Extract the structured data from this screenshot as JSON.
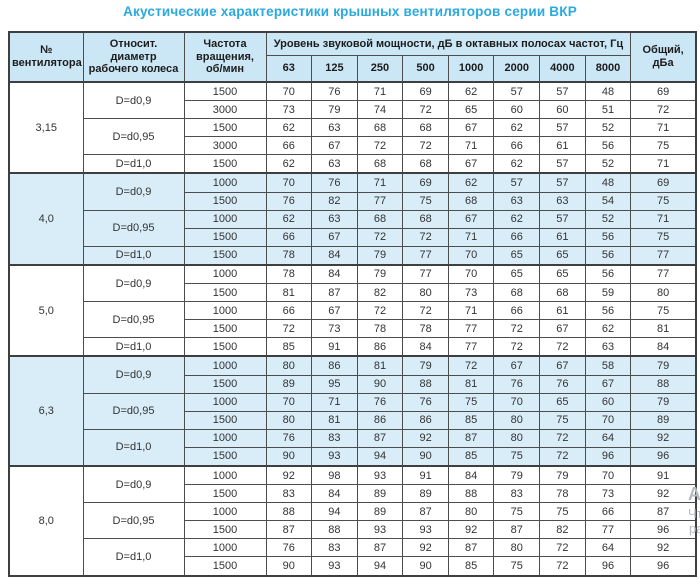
{
  "title": "Акустические характеристики крышных вентиляторов серии ВКР",
  "colors": {
    "title_blue": "#29a9e0",
    "header_bg": "#cbe7f5",
    "shaded_row_bg": "#d9edf8",
    "border": "#4d4d4d",
    "text": "#333333"
  },
  "watermark": {
    "fragments": [
      "Ак",
      "Чт",
      "ра"
    ]
  },
  "chart_data": {
    "type": "table",
    "title": "Акустические характеристики крышных вентиляторов серии ВКР",
    "header": {
      "fan_number": "№ вентилятора",
      "rel_diameter": "Относит. диаметр рабочего колеса",
      "rotation": "Частота вращения, об/мин",
      "spl_group": "Уровень звуковой мощности, дБ в октавных полосах частот, Гц",
      "freq_bands": [
        "63",
        "125",
        "250",
        "500",
        "1000",
        "2000",
        "4000",
        "8000"
      ],
      "total": "Общий, дБа"
    },
    "groups": [
      {
        "fan": "3,15",
        "shaded": false,
        "subgroups": [
          {
            "diameter": "D=d0,9",
            "rows": [
              {
                "rpm": "1500",
                "values": [
                  70,
                  76,
                  71,
                  69,
                  62,
                  57,
                  57,
                  48
                ],
                "total": 69
              },
              {
                "rpm": "3000",
                "values": [
                  73,
                  79,
                  74,
                  72,
                  65,
                  60,
                  60,
                  51
                ],
                "total": 72
              }
            ]
          },
          {
            "diameter": "D=d0,95",
            "rows": [
              {
                "rpm": "1500",
                "values": [
                  62,
                  63,
                  68,
                  68,
                  67,
                  62,
                  57,
                  52
                ],
                "total": 71
              },
              {
                "rpm": "3000",
                "values": [
                  66,
                  67,
                  72,
                  72,
                  71,
                  66,
                  61,
                  56
                ],
                "total": 75
              }
            ]
          },
          {
            "diameter": "D=d1,0",
            "rows": [
              {
                "rpm": "1500",
                "values": [
                  62,
                  63,
                  68,
                  68,
                  67,
                  62,
                  57,
                  52
                ],
                "total": 71
              }
            ]
          }
        ]
      },
      {
        "fan": "4,0",
        "shaded": true,
        "subgroups": [
          {
            "diameter": "D=d0,9",
            "rows": [
              {
                "rpm": "1000",
                "values": [
                  70,
                  76,
                  71,
                  69,
                  62,
                  57,
                  57,
                  48
                ],
                "total": 69
              },
              {
                "rpm": "1500",
                "values": [
                  76,
                  82,
                  77,
                  75,
                  68,
                  63,
                  63,
                  54
                ],
                "total": 75
              }
            ]
          },
          {
            "diameter": "D=d0,95",
            "rows": [
              {
                "rpm": "1000",
                "values": [
                  62,
                  63,
                  68,
                  68,
                  67,
                  62,
                  57,
                  52
                ],
                "total": 71
              },
              {
                "rpm": "1500",
                "values": [
                  66,
                  67,
                  72,
                  72,
                  71,
                  66,
                  61,
                  56
                ],
                "total": 75
              }
            ]
          },
          {
            "diameter": "D=d1,0",
            "rows": [
              {
                "rpm": "1500",
                "values": [
                  78,
                  84,
                  79,
                  77,
                  70,
                  65,
                  65,
                  56
                ],
                "total": 77
              }
            ]
          }
        ]
      },
      {
        "fan": "5,0",
        "shaded": false,
        "subgroups": [
          {
            "diameter": "D=d0,9",
            "rows": [
              {
                "rpm": "1000",
                "values": [
                  78,
                  84,
                  79,
                  77,
                  70,
                  65,
                  65,
                  56
                ],
                "total": 77
              },
              {
                "rpm": "1500",
                "values": [
                  81,
                  87,
                  82,
                  80,
                  73,
                  68,
                  68,
                  59
                ],
                "total": 80
              }
            ]
          },
          {
            "diameter": "D=d0,95",
            "rows": [
              {
                "rpm": "1000",
                "values": [
                  66,
                  67,
                  72,
                  72,
                  71,
                  66,
                  61,
                  56
                ],
                "total": 75
              },
              {
                "rpm": "1500",
                "values": [
                  72,
                  73,
                  78,
                  78,
                  77,
                  72,
                  67,
                  62
                ],
                "total": 81
              }
            ]
          },
          {
            "diameter": "D=d1,0",
            "rows": [
              {
                "rpm": "1500",
                "values": [
                  85,
                  91,
                  86,
                  84,
                  77,
                  72,
                  72,
                  63
                ],
                "total": 84
              }
            ]
          }
        ]
      },
      {
        "fan": "6,3",
        "shaded": true,
        "subgroups": [
          {
            "diameter": "D=d0,9",
            "rows": [
              {
                "rpm": "1000",
                "values": [
                  80,
                  86,
                  81,
                  79,
                  72,
                  67,
                  67,
                  58
                ],
                "total": 79
              },
              {
                "rpm": "1500",
                "values": [
                  89,
                  95,
                  90,
                  88,
                  81,
                  76,
                  76,
                  67
                ],
                "total": 88
              }
            ]
          },
          {
            "diameter": "D=d0,95",
            "rows": [
              {
                "rpm": "1000",
                "values": [
                  70,
                  71,
                  76,
                  76,
                  75,
                  70,
                  65,
                  60
                ],
                "total": 79
              },
              {
                "rpm": "1500",
                "values": [
                  80,
                  81,
                  86,
                  86,
                  85,
                  80,
                  75,
                  70
                ],
                "total": 89
              }
            ]
          },
          {
            "diameter": "D=d1,0",
            "rows": [
              {
                "rpm": "1000",
                "values": [
                  76,
                  83,
                  87,
                  92,
                  87,
                  80,
                  72,
                  64
                ],
                "total": 92
              },
              {
                "rpm": "1500",
                "values": [
                  90,
                  93,
                  94,
                  90,
                  85,
                  75,
                  72,
                  96
                ],
                "total": 96
              }
            ]
          }
        ]
      },
      {
        "fan": "8,0",
        "shaded": false,
        "subgroups": [
          {
            "diameter": "D=d0,9",
            "rows": [
              {
                "rpm": "1000",
                "values": [
                  92,
                  98,
                  93,
                  91,
                  84,
                  79,
                  79,
                  70
                ],
                "total": 91
              },
              {
                "rpm": "1500",
                "values": [
                  83,
                  84,
                  89,
                  89,
                  88,
                  83,
                  78,
                  73
                ],
                "total": 92
              }
            ]
          },
          {
            "diameter": "D=d0,95",
            "rows": [
              {
                "rpm": "1000",
                "values": [
                  88,
                  94,
                  89,
                  87,
                  80,
                  75,
                  75,
                  66
                ],
                "total": 87
              },
              {
                "rpm": "1500",
                "values": [
                  87,
                  88,
                  93,
                  93,
                  92,
                  87,
                  82,
                  77
                ],
                "total": 96
              }
            ]
          },
          {
            "diameter": "D=d1,0",
            "rows": [
              {
                "rpm": "1000",
                "values": [
                  76,
                  83,
                  87,
                  92,
                  87,
                  80,
                  72,
                  64
                ],
                "total": 92
              },
              {
                "rpm": "1500",
                "values": [
                  90,
                  93,
                  94,
                  90,
                  85,
                  75,
                  72,
                  96
                ],
                "total": 96
              }
            ]
          }
        ]
      }
    ]
  }
}
